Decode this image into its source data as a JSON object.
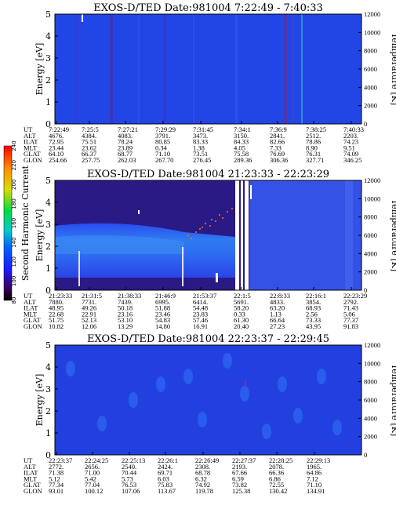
{
  "chart_data": [
    {
      "type": "heatmap",
      "title": "EXOS-D/TED   Date:981004  7:22:49 - 7:40:33",
      "ylabel": "Energy [eV]",
      "y2label": "Temperature [K]",
      "ylim": [
        0,
        5
      ],
      "y2lim": [
        0,
        12000
      ],
      "yticks": [
        "0",
        "1",
        "2",
        "3",
        "4",
        "5"
      ],
      "y2ticks": [
        "0",
        "2000",
        "4000",
        "6000",
        "8000",
        "10000",
        "12000"
      ],
      "row_labels": [
        "UT",
        "ALT",
        "ILAT",
        "MLT",
        "GLAT",
        "GLON"
      ],
      "columns": [
        [
          "7:22:49",
          "4676.",
          "72.95",
          "23.44",
          "64.10",
          "254.66"
        ],
        [
          "7:25:5",
          "4384.",
          "75.51",
          "23.62",
          "66.37",
          "257.75"
        ],
        [
          "7:27:21",
          "4083.",
          "78.24",
          "23.89",
          "68.77",
          "262.03"
        ],
        [
          "7:29:29",
          "3791.",
          "80.85",
          "0.34",
          "71.10",
          "267.70"
        ],
        [
          "7:31:45",
          "3473.",
          "83.33",
          "1.38",
          "73.51",
          "276.45"
        ],
        [
          "7:34:1",
          "3150.",
          "84.33",
          "4.05",
          "75.58",
          "289.36"
        ],
        [
          "7:36:9",
          "2841.",
          "82.66",
          "7.33",
          "76.69",
          "306.36"
        ],
        [
          "7:38:25",
          "2512.",
          "78.86",
          "8.90",
          "76.31",
          "327.71"
        ],
        [
          "7:40:33",
          "2203.",
          "74.23",
          "9.51",
          "74.09",
          "346.25"
        ]
      ]
    },
    {
      "type": "heatmap",
      "title": "EXOS-D/TED   Date:981004  21:23:33 - 22:23:29",
      "ylabel": "Energy [eV]",
      "y2label": "Temperature [K]",
      "ylim": [
        0,
        5
      ],
      "y2lim": [
        0,
        12000
      ],
      "yticks": [
        "0",
        "1",
        "2",
        "3",
        "4",
        "5"
      ],
      "y2ticks": [
        "0",
        "2000",
        "4000",
        "6000",
        "8000",
        "10000",
        "12000"
      ],
      "row_labels": [
        "UT",
        "ALT",
        "ILAT",
        "MLT",
        "GLAT",
        "GLON"
      ],
      "columns": [
        [
          "21:23:33",
          "7880.",
          "48.95",
          "22.68",
          "51.75",
          "10.82"
        ],
        [
          "21:31:5",
          "7731.",
          "49.26",
          "22.91",
          "52.13",
          "12.06"
        ],
        [
          "21:38:33",
          "7439.",
          "50.18",
          "23.16",
          "53.10",
          "13.29"
        ],
        [
          "21:46:9",
          "6995.",
          "51.88",
          "23.46",
          "54.83",
          "14.80"
        ],
        [
          "21:53:37",
          "6414.",
          "54.48",
          "23.83",
          "57.46",
          "16.91"
        ],
        [
          "22:1:5",
          "5691.",
          "58.20",
          "0.33",
          "61.30",
          "20.40"
        ],
        [
          "22:8:33",
          "4833.",
          "63.20",
          "1.13",
          "66.64",
          "27.23"
        ],
        [
          "22:16:1",
          "3854.",
          "68.93",
          "2.56",
          "73.33",
          "43.95"
        ],
        [
          "22:23:29",
          "2792.",
          "71.43",
          "5.06",
          "77.37",
          "91.83"
        ]
      ],
      "colorbar": {
        "label": "Second Harmonic Current",
        "ticks": [
          "80",
          "100",
          "120",
          "140",
          "160",
          "180",
          "200",
          "220",
          "240"
        ],
        "range": [
          80,
          240
        ]
      }
    },
    {
      "type": "heatmap",
      "title": "EXOS-D/TED   Date:981004  22:23:37 - 22:29:45",
      "ylabel": "Energy [eV]",
      "y2label": "Temperature [K]",
      "ylim": [
        0,
        5
      ],
      "y2lim": [
        0,
        12000
      ],
      "yticks": [
        "0",
        "1",
        "2",
        "3",
        "4",
        "5"
      ],
      "y2ticks": [
        "0",
        "2000",
        "4000",
        "6000",
        "8000",
        "10000",
        "12000"
      ],
      "row_labels": [
        "UT",
        "ALT",
        "ILAT",
        "MLT",
        "GLAT",
        "GLON"
      ],
      "columns": [
        [
          "22:23:37",
          "2772.",
          "71.38",
          "5.12",
          "77.34",
          "93.01"
        ],
        [
          "22:24:25",
          "2656.",
          "71.00",
          "5.42",
          "77.04",
          "100.12"
        ],
        [
          "22:25:13",
          "2540.",
          "70.44",
          "5.73",
          "76.53",
          "107.06"
        ],
        [
          "22:26:1",
          "2424.",
          "69.71",
          "6.03",
          "75.83",
          "113.67"
        ],
        [
          "22:26:49",
          "2308.",
          "68.78",
          "6.32",
          "74.92",
          "119.78"
        ],
        [
          "22:27:37",
          "2193.",
          "67.66",
          "6.59",
          "73.82",
          "125.38"
        ],
        [
          "22:28:25",
          "2078.",
          "66.36",
          "6.86",
          "72.55",
          "130.42"
        ],
        [
          "22:29:13",
          "1965.",
          "64.86",
          "7.12",
          "71.10",
          "134.91"
        ]
      ]
    }
  ]
}
